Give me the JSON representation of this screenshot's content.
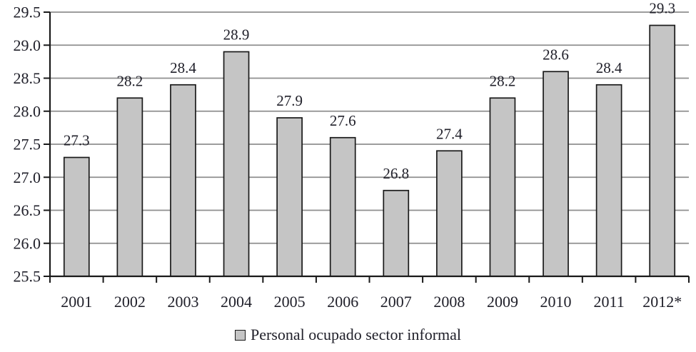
{
  "chart_data": {
    "type": "bar",
    "title": "",
    "series_name": "Personal ocupado sector informal",
    "categories": [
      "2001",
      "2002",
      "2003",
      "2004",
      "2005",
      "2006",
      "2007",
      "2008",
      "2009",
      "2010",
      "2011",
      "2012*"
    ],
    "values": [
      27.3,
      28.2,
      28.4,
      28.9,
      27.9,
      27.6,
      26.8,
      27.4,
      28.2,
      28.6,
      28.4,
      29.3
    ],
    "value_labels": [
      "27.3",
      "28.2",
      "28.4",
      "28.9",
      "27.9",
      "27.6",
      "26.8",
      "27.4",
      "28.2",
      "28.6",
      "28.4",
      "29.3"
    ],
    "xlabel": "",
    "ylabel": "",
    "ylim": [
      25.5,
      29.5
    ],
    "yticks": [
      25.5,
      26.0,
      26.5,
      27.0,
      27.5,
      28.0,
      28.5,
      29.0,
      29.5
    ],
    "ytick_labels": [
      "25.5",
      "26.0",
      "26.5",
      "27.0",
      "27.5",
      "28.0",
      "28.5",
      "29.0",
      "29.5"
    ],
    "grid": true,
    "legend_position": "bottom"
  },
  "legend": {
    "label": "Personal ocupado sector informal"
  },
  "colors": {
    "background": "#ffffff",
    "bar_fill": "#c5c5c5",
    "bar_border": "#1a1a1a",
    "gridline": "#8f8f8f",
    "axis": "#1a1a1a",
    "text": "#20202a"
  }
}
